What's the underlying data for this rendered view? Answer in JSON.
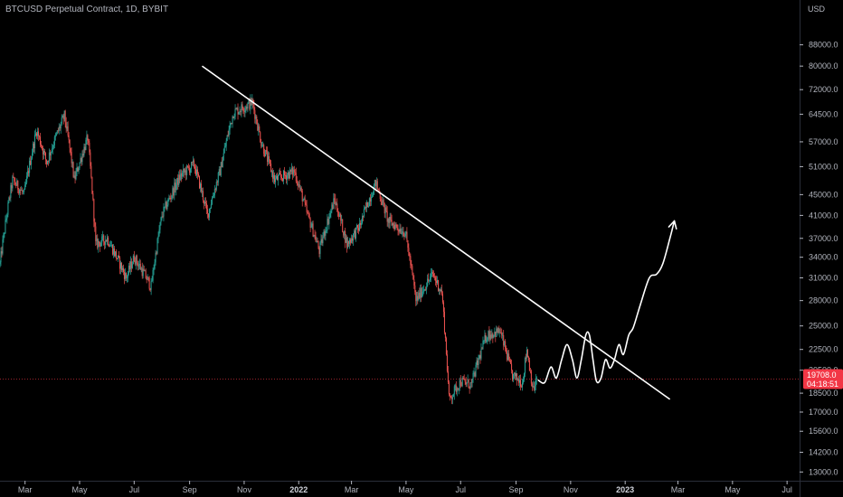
{
  "header": {
    "title": "BTCUSD Perpetual Contract, 1D, BYBIT"
  },
  "price_axis": {
    "currency": "USD"
  },
  "current_price": {
    "value": "19708.0",
    "countdown": "04:18:51",
    "value_num": 19708,
    "color": "#f23645"
  },
  "colors": {
    "up": "#26a69a",
    "down": "#ef5350",
    "annotation": "#ffffff",
    "background": "#000000"
  },
  "chart_data": {
    "type": "candlestick",
    "title": "BTCUSD Perpetual Contract, 1D, BYBIT",
    "xlabel": "",
    "ylabel": "",
    "y_scale": "log",
    "ylim": [
      12500,
      100000
    ],
    "xlim": [
      "2021-02-01",
      "2023-07-15"
    ],
    "y_ticks": [
      "88000.0",
      "80000.0",
      "72000.0",
      "64500.0",
      "57000.0",
      "51000.0",
      "45000.0",
      "41000.0",
      "37000.0",
      "34000.0",
      "31000.0",
      "28000.0",
      "25000.0",
      "22500.0",
      "20500.0",
      "18500.0",
      "17000.0",
      "15600.0",
      "14200.0",
      "13000.0"
    ],
    "x_ticks": [
      {
        "label": "Mar",
        "date": "2021-03-01"
      },
      {
        "label": "May",
        "date": "2021-05-01"
      },
      {
        "label": "Jul",
        "date": "2021-07-01"
      },
      {
        "label": "Sep",
        "date": "2021-09-01"
      },
      {
        "label": "Nov",
        "date": "2021-11-01"
      },
      {
        "label": "2022",
        "date": "2022-01-01",
        "bold": true
      },
      {
        "label": "Mar",
        "date": "2022-03-01"
      },
      {
        "label": "May",
        "date": "2022-05-01"
      },
      {
        "label": "Jul",
        "date": "2022-07-01"
      },
      {
        "label": "Sep",
        "date": "2022-09-01"
      },
      {
        "label": "Nov",
        "date": "2022-11-01"
      },
      {
        "label": "2023",
        "date": "2023-01-01",
        "bold": true
      },
      {
        "label": "Mar",
        "date": "2023-03-01"
      },
      {
        "label": "May",
        "date": "2023-05-01"
      },
      {
        "label": "Jul",
        "date": "2023-07-01"
      }
    ],
    "price_path": [
      [
        "2021-02-01",
        33000
      ],
      [
        "2021-02-15",
        48000
      ],
      [
        "2021-02-28",
        45000
      ],
      [
        "2021-03-14",
        60000
      ],
      [
        "2021-03-25",
        52000
      ],
      [
        "2021-04-14",
        64000
      ],
      [
        "2021-04-25",
        48000
      ],
      [
        "2021-05-10",
        58000
      ],
      [
        "2021-05-19",
        36000
      ],
      [
        "2021-06-01",
        37000
      ],
      [
        "2021-06-22",
        31000
      ],
      [
        "2021-07-01",
        34000
      ],
      [
        "2021-07-20",
        29800
      ],
      [
        "2021-08-01",
        41000
      ],
      [
        "2021-08-22",
        49000
      ],
      [
        "2021-09-06",
        51500
      ],
      [
        "2021-09-21",
        41000
      ],
      [
        "2021-10-05",
        50000
      ],
      [
        "2021-10-20",
        65000
      ],
      [
        "2021-11-10",
        68000
      ],
      [
        "2021-11-20",
        57000
      ],
      [
        "2021-12-05",
        48000
      ],
      [
        "2021-12-27",
        50000
      ],
      [
        "2022-01-10",
        41500
      ],
      [
        "2022-01-24",
        35000
      ],
      [
        "2022-02-10",
        44000
      ],
      [
        "2022-02-24",
        36000
      ],
      [
        "2022-03-10",
        39000
      ],
      [
        "2022-03-28",
        47500
      ],
      [
        "2022-04-11",
        40000
      ],
      [
        "2022-04-30",
        38000
      ],
      [
        "2022-05-12",
        28000
      ],
      [
        "2022-05-31",
        31500
      ],
      [
        "2022-06-10",
        29000
      ],
      [
        "2022-06-18",
        18000
      ],
      [
        "2022-07-01",
        19500
      ],
      [
        "2022-07-13",
        19200
      ],
      [
        "2022-07-30",
        24000
      ],
      [
        "2022-08-14",
        24400
      ],
      [
        "2022-08-28",
        20000
      ],
      [
        "2022-09-08",
        19400
      ],
      [
        "2022-09-13",
        22500
      ],
      [
        "2022-09-20",
        18700
      ],
      [
        "2022-09-24",
        19708
      ]
    ],
    "annotations": {
      "trendline": {
        "start": [
          "2021-09-15",
          80000
        ],
        "end": [
          "2023-02-20",
          18000
        ]
      },
      "projection_path": [
        [
          "2022-09-26",
          19600
        ],
        [
          "2022-10-03",
          19400
        ],
        [
          "2022-10-10",
          20800
        ],
        [
          "2022-10-16",
          19800
        ],
        [
          "2022-10-22",
          21500
        ],
        [
          "2022-10-28",
          23000
        ],
        [
          "2022-11-03",
          21500
        ],
        [
          "2022-11-08",
          19800
        ],
        [
          "2022-11-13",
          21500
        ],
        [
          "2022-11-18",
          24000
        ],
        [
          "2022-11-22",
          24000
        ],
        [
          "2022-11-26",
          21500
        ],
        [
          "2022-11-30",
          19500
        ],
        [
          "2022-12-05",
          19800
        ],
        [
          "2022-12-10",
          21500
        ],
        [
          "2022-12-15",
          20700
        ],
        [
          "2022-12-20",
          21500
        ],
        [
          "2022-12-25",
          23000
        ],
        [
          "2022-12-30",
          22000
        ],
        [
          "2023-01-05",
          24000
        ],
        [
          "2023-01-10",
          24800
        ],
        [
          "2023-01-18",
          27500
        ],
        [
          "2023-01-28",
          31000
        ],
        [
          "2023-02-05",
          31500
        ],
        [
          "2023-02-12",
          33000
        ],
        [
          "2023-02-20",
          37000
        ],
        [
          "2023-02-25",
          40000
        ]
      ]
    }
  }
}
